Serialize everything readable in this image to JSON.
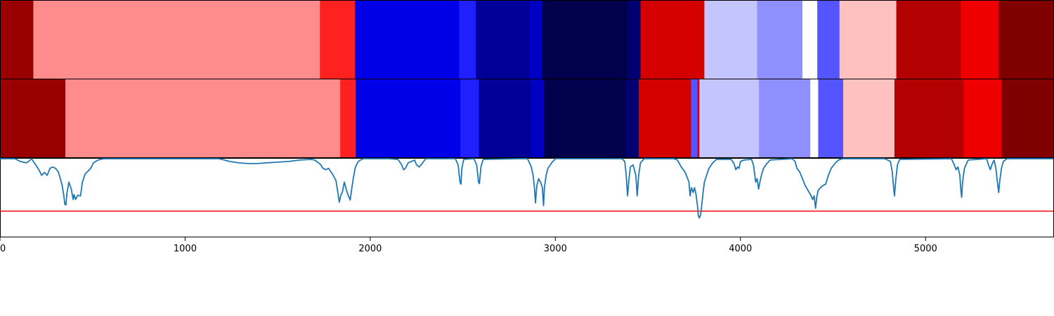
{
  "chart_data": {
    "type": "heatmap",
    "xlim": [
      0,
      5690
    ],
    "x_ticks": [
      {
        "value": 0,
        "label": "0"
      },
      {
        "value": 1000,
        "label": "1000"
      },
      {
        "value": 2000,
        "label": "2000"
      },
      {
        "value": 3000,
        "label": "3000"
      },
      {
        "value": 4000,
        "label": "4000"
      },
      {
        "value": 5000,
        "label": "5000"
      }
    ],
    "grid": false,
    "tracks": [
      {
        "segments": [
          {
            "start": 0,
            "end": 180,
            "color": "#990000"
          },
          {
            "start": 180,
            "end": 1728,
            "color": "#ff8c8c"
          },
          {
            "start": 1728,
            "end": 1918,
            "color": "#ff2020"
          },
          {
            "start": 1918,
            "end": 2480,
            "color": "#0000e8"
          },
          {
            "start": 2480,
            "end": 2570,
            "color": "#2020ff"
          },
          {
            "start": 2570,
            "end": 2860,
            "color": "#000099"
          },
          {
            "start": 2860,
            "end": 2930,
            "color": "#0000c4"
          },
          {
            "start": 2930,
            "end": 3390,
            "color": "#00004c"
          },
          {
            "start": 3390,
            "end": 3460,
            "color": "#000070"
          },
          {
            "start": 3460,
            "end": 3805,
            "color": "#d40000"
          },
          {
            "start": 3805,
            "end": 4090,
            "color": "#c4c4ff"
          },
          {
            "start": 4090,
            "end": 4335,
            "color": "#8f8fff"
          },
          {
            "start": 4335,
            "end": 4415,
            "color": "#ffffff"
          },
          {
            "start": 4415,
            "end": 4535,
            "color": "#5555ff"
          },
          {
            "start": 4535,
            "end": 4842,
            "color": "#ffc0c0"
          },
          {
            "start": 4842,
            "end": 5190,
            "color": "#b30000"
          },
          {
            "start": 5190,
            "end": 5395,
            "color": "#ee0000"
          },
          {
            "start": 5395,
            "end": 5690,
            "color": "#800000"
          }
        ]
      },
      {
        "segments": [
          {
            "start": 0,
            "end": 353,
            "color": "#990000"
          },
          {
            "start": 353,
            "end": 1838,
            "color": "#ff8c8c"
          },
          {
            "start": 1838,
            "end": 1922,
            "color": "#ff2020"
          },
          {
            "start": 1922,
            "end": 2487,
            "color": "#0000e8"
          },
          {
            "start": 2487,
            "end": 2587,
            "color": "#2020ff"
          },
          {
            "start": 2587,
            "end": 2868,
            "color": "#000099"
          },
          {
            "start": 2868,
            "end": 2939,
            "color": "#0000c4"
          },
          {
            "start": 2939,
            "end": 3380,
            "color": "#00004c"
          },
          {
            "start": 3380,
            "end": 3450,
            "color": "#000070"
          },
          {
            "start": 3450,
            "end": 3733,
            "color": "#d40000"
          },
          {
            "start": 3733,
            "end": 3768,
            "color": "#5555ff"
          },
          {
            "start": 3768,
            "end": 3778,
            "color": "#d40000"
          },
          {
            "start": 3778,
            "end": 4100,
            "color": "#c4c4ff"
          },
          {
            "start": 4100,
            "end": 4377,
            "color": "#8f8fff"
          },
          {
            "start": 4377,
            "end": 4420,
            "color": "#ffffff"
          },
          {
            "start": 4420,
            "end": 4555,
            "color": "#5555ff"
          },
          {
            "start": 4555,
            "end": 4832,
            "color": "#ffc0c0"
          },
          {
            "start": 4832,
            "end": 5205,
            "color": "#b30000"
          },
          {
            "start": 5205,
            "end": 5410,
            "color": "#ee0000"
          },
          {
            "start": 5410,
            "end": 5690,
            "color": "#800000"
          }
        ]
      }
    ],
    "line_panel": {
      "ylim": [
        -1.1,
        0.05
      ],
      "threshold": {
        "value": -0.72,
        "color": "#ff0000"
      },
      "series": [
        {
          "color": "#1f77b4",
          "points": [
            [
              0,
              0.05
            ],
            [
              80,
              0.04
            ],
            [
              110,
              0.0
            ],
            [
              140,
              -0.02
            ],
            [
              155,
              0.0
            ],
            [
              170,
              0.04
            ],
            [
              190,
              -0.04
            ],
            [
              210,
              -0.12
            ],
            [
              225,
              -0.2
            ],
            [
              240,
              -0.16
            ],
            [
              255,
              -0.2
            ],
            [
              270,
              -0.1
            ],
            [
              285,
              -0.08
            ],
            [
              300,
              -0.1
            ],
            [
              315,
              -0.15
            ],
            [
              325,
              -0.24
            ],
            [
              335,
              -0.34
            ],
            [
              345,
              -0.5
            ],
            [
              350,
              -0.62
            ],
            [
              356,
              -0.63
            ],
            [
              362,
              -0.45
            ],
            [
              372,
              -0.3
            ],
            [
              385,
              -0.4
            ],
            [
              395,
              -0.55
            ],
            [
              400,
              -0.48
            ],
            [
              408,
              -0.55
            ],
            [
              420,
              -0.49
            ],
            [
              435,
              -0.5
            ],
            [
              445,
              -0.3
            ],
            [
              460,
              -0.18
            ],
            [
              475,
              -0.14
            ],
            [
              490,
              -0.1
            ],
            [
              505,
              -0.02
            ],
            [
              530,
              0.02
            ],
            [
              560,
              0.04
            ],
            [
              600,
              0.05
            ],
            [
              800,
              0.05
            ],
            [
              1000,
              0.05
            ],
            [
              1100,
              0.05
            ],
            [
              1180,
              0.05
            ],
            [
              1200,
              0.03
            ],
            [
              1240,
              0.0
            ],
            [
              1290,
              -0.02
            ],
            [
              1340,
              -0.03
            ],
            [
              1390,
              -0.03
            ],
            [
              1440,
              -0.02
            ],
            [
              1500,
              -0.01
            ],
            [
              1560,
              0.0
            ],
            [
              1620,
              0.02
            ],
            [
              1680,
              0.03
            ],
            [
              1700,
              0.02
            ],
            [
              1715,
              -0.01
            ],
            [
              1730,
              -0.04
            ],
            [
              1745,
              -0.1
            ],
            [
              1760,
              -0.12
            ],
            [
              1775,
              -0.1
            ],
            [
              1790,
              -0.16
            ],
            [
              1800,
              -0.2
            ],
            [
              1815,
              -0.28
            ],
            [
              1825,
              -0.45
            ],
            [
              1833,
              -0.59
            ],
            [
              1840,
              -0.5
            ],
            [
              1850,
              -0.44
            ],
            [
              1860,
              -0.3
            ],
            [
              1872,
              -0.42
            ],
            [
              1882,
              -0.5
            ],
            [
              1892,
              -0.56
            ],
            [
              1900,
              -0.4
            ],
            [
              1910,
              -0.22
            ],
            [
              1920,
              -0.08
            ],
            [
              1935,
              0.0
            ],
            [
              1960,
              0.05
            ],
            [
              2100,
              0.05
            ],
            [
              2150,
              0.03
            ],
            [
              2170,
              -0.05
            ],
            [
              2180,
              -0.12
            ],
            [
              2190,
              -0.1
            ],
            [
              2205,
              -0.02
            ],
            [
              2240,
              0.02
            ],
            [
              2250,
              -0.05
            ],
            [
              2265,
              -0.08
            ],
            [
              2280,
              -0.03
            ],
            [
              2300,
              0.04
            ],
            [
              2440,
              0.05
            ],
            [
              2460,
              0.04
            ],
            [
              2475,
              -0.05
            ],
            [
              2485,
              -0.3
            ],
            [
              2490,
              -0.33
            ],
            [
              2495,
              -0.1
            ],
            [
              2505,
              0.03
            ],
            [
              2560,
              0.04
            ],
            [
              2575,
              -0.05
            ],
            [
              2585,
              -0.3
            ],
            [
              2590,
              -0.32
            ],
            [
              2598,
              -0.08
            ],
            [
              2610,
              0.03
            ],
            [
              2800,
              0.05
            ],
            [
              2850,
              0.04
            ],
            [
              2870,
              -0.08
            ],
            [
              2880,
              -0.2
            ],
            [
              2888,
              -0.4
            ],
            [
              2893,
              -0.6
            ],
            [
              2900,
              -0.35
            ],
            [
              2910,
              -0.25
            ],
            [
              2920,
              -0.3
            ],
            [
              2930,
              -0.38
            ],
            [
              2936,
              -0.64
            ],
            [
              2941,
              -0.38
            ],
            [
              2950,
              -0.2
            ],
            [
              2960,
              -0.1
            ],
            [
              2980,
              -0.02
            ],
            [
              3000,
              0.04
            ],
            [
              3360,
              0.05
            ],
            [
              3375,
              0.0
            ],
            [
              3383,
              -0.2
            ],
            [
              3390,
              -0.5
            ],
            [
              3398,
              -0.25
            ],
            [
              3405,
              -0.08
            ],
            [
              3420,
              -0.05
            ],
            [
              3435,
              -0.2
            ],
            [
              3442,
              -0.5
            ],
            [
              3450,
              -0.2
            ],
            [
              3460,
              -0.02
            ],
            [
              3480,
              0.05
            ],
            [
              3640,
              0.05
            ],
            [
              3660,
              0.02
            ],
            [
              3680,
              -0.08
            ],
            [
              3700,
              -0.15
            ],
            [
              3715,
              -0.25
            ],
            [
              3722,
              -0.3
            ],
            [
              3728,
              -0.5
            ],
            [
              3735,
              -0.38
            ],
            [
              3745,
              -0.45
            ],
            [
              3752,
              -0.38
            ],
            [
              3760,
              -0.48
            ],
            [
              3768,
              -0.65
            ],
            [
              3772,
              -0.78
            ],
            [
              3778,
              -0.82
            ],
            [
              3785,
              -0.77
            ],
            [
              3790,
              -0.65
            ],
            [
              3798,
              -0.45
            ],
            [
              3805,
              -0.3
            ],
            [
              3815,
              -0.22
            ],
            [
              3830,
              -0.1
            ],
            [
              3850,
              -0.02
            ],
            [
              3870,
              0.03
            ],
            [
              3950,
              0.03
            ],
            [
              3965,
              -0.03
            ],
            [
              3975,
              -0.12
            ],
            [
              3985,
              -0.08
            ],
            [
              3992,
              -0.1
            ],
            [
              4000,
              0.0
            ],
            [
              4020,
              0.02
            ],
            [
              4060,
              0.03
            ],
            [
              4070,
              -0.05
            ],
            [
              4078,
              -0.2
            ],
            [
              4082,
              -0.3
            ],
            [
              4090,
              -0.25
            ],
            [
              4098,
              -0.4
            ],
            [
              4105,
              -0.3
            ],
            [
              4115,
              -0.18
            ],
            [
              4125,
              -0.1
            ],
            [
              4140,
              -0.04
            ],
            [
              4160,
              0.02
            ],
            [
              4280,
              0.04
            ],
            [
              4295,
              0.0
            ],
            [
              4305,
              -0.1
            ],
            [
              4320,
              -0.15
            ],
            [
              4335,
              -0.25
            ],
            [
              4350,
              -0.35
            ],
            [
              4365,
              -0.42
            ],
            [
              4378,
              -0.48
            ],
            [
              4390,
              -0.55
            ],
            [
              4398,
              -0.5
            ],
            [
              4406,
              -0.68
            ],
            [
              4412,
              -0.52
            ],
            [
              4420,
              -0.42
            ],
            [
              4432,
              -0.38
            ],
            [
              4445,
              -0.35
            ],
            [
              4460,
              -0.33
            ],
            [
              4475,
              -0.2
            ],
            [
              4490,
              -0.1
            ],
            [
              4510,
              -0.03
            ],
            [
              4530,
              0.02
            ],
            [
              4550,
              0.04
            ],
            [
              4780,
              0.05
            ],
            [
              4810,
              0.0
            ],
            [
              4820,
              -0.15
            ],
            [
              4828,
              -0.4
            ],
            [
              4832,
              -0.5
            ],
            [
              4838,
              -0.3
            ],
            [
              4848,
              -0.05
            ],
            [
              4860,
              0.03
            ],
            [
              5140,
              0.04
            ],
            [
              5155,
              -0.05
            ],
            [
              5165,
              -0.12
            ],
            [
              5175,
              -0.08
            ],
            [
              5185,
              -0.2
            ],
            [
              5190,
              -0.4
            ],
            [
              5195,
              -0.52
            ],
            [
              5200,
              -0.3
            ],
            [
              5210,
              -0.1
            ],
            [
              5230,
              0.02
            ],
            [
              5330,
              0.04
            ],
            [
              5340,
              -0.05
            ],
            [
              5350,
              -0.12
            ],
            [
              5358,
              -0.05
            ],
            [
              5370,
              0.02
            ],
            [
              5380,
              -0.1
            ],
            [
              5390,
              -0.35
            ],
            [
              5395,
              -0.45
            ],
            [
              5400,
              -0.3
            ],
            [
              5410,
              -0.1
            ],
            [
              5420,
              0.0
            ],
            [
              5440,
              0.05
            ],
            [
              5690,
              0.05
            ]
          ]
        }
      ]
    }
  }
}
